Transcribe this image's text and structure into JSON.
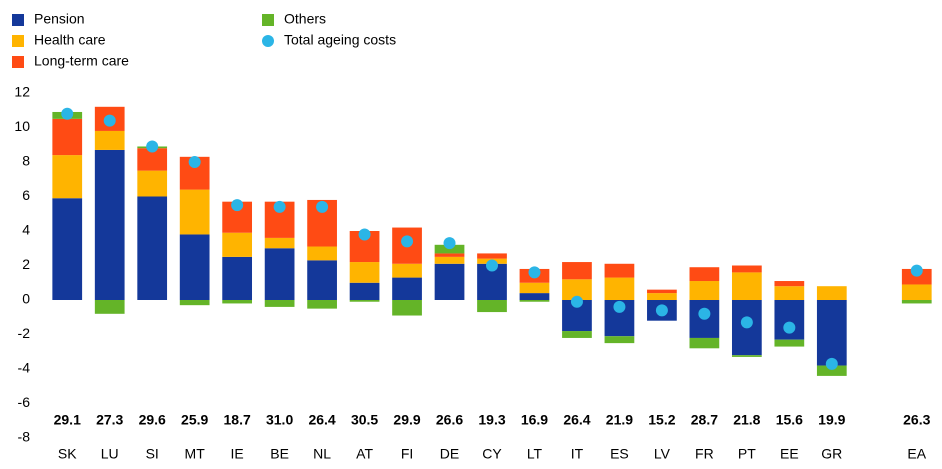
{
  "chart_data": {
    "type": "stacked_bar",
    "categories": [
      "SK",
      "LU",
      "SI",
      "MT",
      "IE",
      "BE",
      "NL",
      "AT",
      "FI",
      "DE",
      "CY",
      "LT",
      "IT",
      "ES",
      "LV",
      "FR",
      "PT",
      "EE",
      "GR",
      null,
      "EA"
    ],
    "series": [
      {
        "name": "Pension",
        "color": "#14389a",
        "values": [
          5.9,
          8.7,
          6.0,
          3.8,
          2.5,
          3.0,
          2.3,
          1.0,
          1.3,
          2.1,
          2.1,
          0.4,
          -1.8,
          -2.1,
          -1.2,
          -2.2,
          -3.2,
          -2.3,
          -3.8,
          null,
          0
        ]
      },
      {
        "name": "Health care",
        "color": "#ffb400",
        "values": [
          2.5,
          1.1,
          1.5,
          2.6,
          1.4,
          0.6,
          0.8,
          1.2,
          0.8,
          0.4,
          0.3,
          0.6,
          1.2,
          1.3,
          0.4,
          1.1,
          1.6,
          0.8,
          0.8,
          null,
          0.9
        ]
      },
      {
        "name": "Long-term care",
        "color": "#ff4b14",
        "values": [
          2.1,
          1.4,
          1.3,
          1.9,
          1.8,
          2.1,
          2.7,
          1.8,
          2.1,
          0.2,
          0.3,
          0.8,
          1.0,
          0.8,
          0.2,
          0.8,
          0.4,
          0.3,
          0,
          null,
          0.9
        ]
      },
      {
        "name": "Others",
        "color": "#64b428",
        "values": [
          0.4,
          -0.8,
          0.1,
          -0.3,
          -0.2,
          -0.4,
          -0.5,
          -0.1,
          -0.9,
          0.5,
          -0.7,
          -0.1,
          -0.4,
          -0.4,
          0,
          -0.6,
          -0.1,
          -0.4,
          -0.6,
          null,
          -0.2
        ]
      }
    ],
    "markers": {
      "name": "Total ageing costs",
      "color": "#2bb5e6",
      "values": [
        10.8,
        10.4,
        8.9,
        8.0,
        5.5,
        5.4,
        5.4,
        3.8,
        3.4,
        3.3,
        2.0,
        1.6,
        -0.1,
        -0.4,
        -0.6,
        -0.8,
        -1.3,
        -1.6,
        -3.7,
        null,
        1.7
      ]
    },
    "level": {
      "values": [
        29.1,
        27.3,
        29.6,
        25.9,
        18.7,
        31.0,
        26.4,
        30.5,
        29.9,
        26.6,
        19.3,
        16.9,
        26.4,
        21.9,
        15.2,
        28.7,
        21.8,
        15.6,
        19.9,
        null,
        26.3
      ],
      "value_labels": [
        "29.1",
        "27.3",
        "29.6",
        "25.9",
        "18.7",
        "31.0",
        "26.4",
        "30.5",
        "29.9",
        "26.6",
        "19.3",
        "16.9",
        "26.4",
        "21.9",
        "15.2",
        "28.7",
        "21.8",
        "15.6",
        "19.9",
        null,
        "26.3"
      ]
    },
    "ylim": [
      -8,
      12
    ],
    "yticks": [
      -8,
      -6,
      -4,
      -2,
      0,
      2,
      4,
      6,
      8,
      10,
      12
    ]
  }
}
